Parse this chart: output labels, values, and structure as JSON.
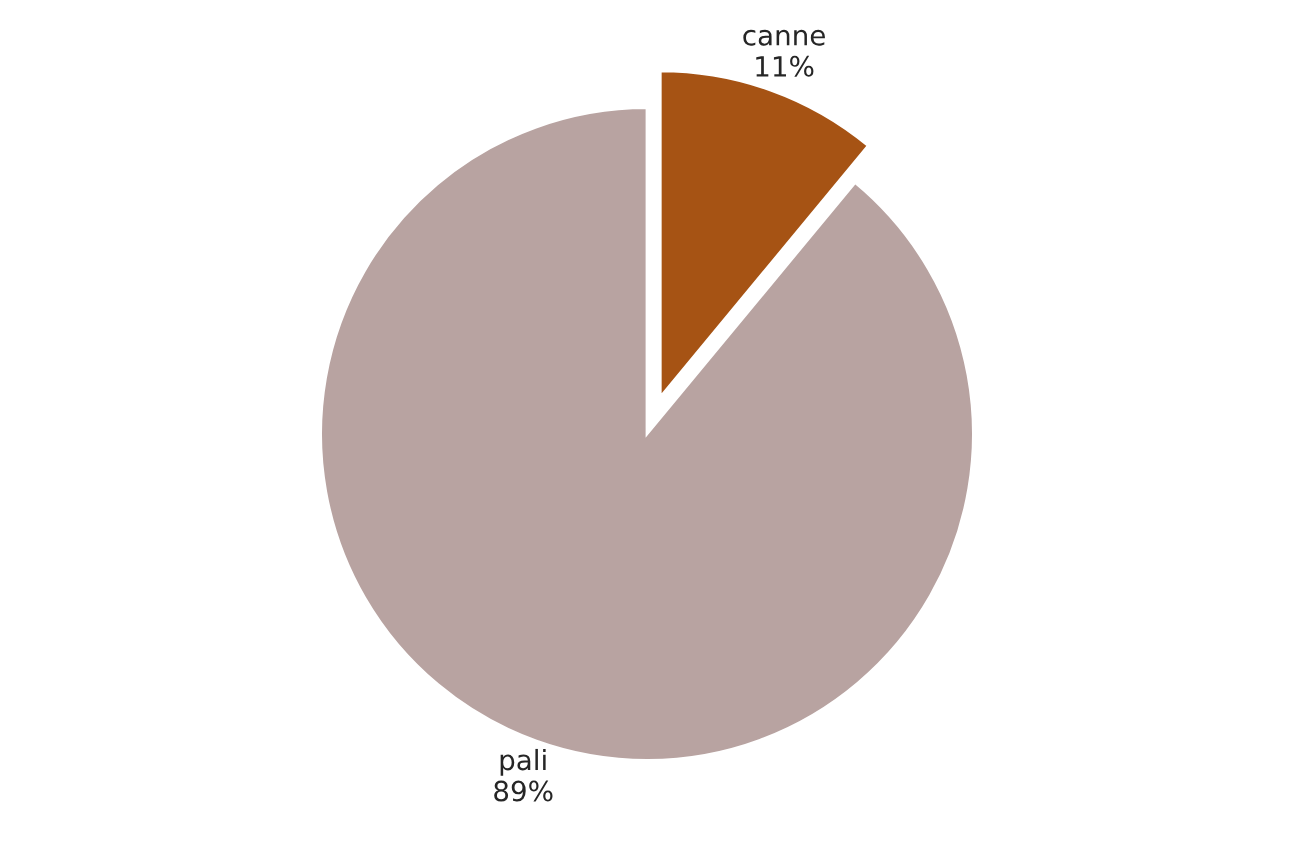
{
  "chart_data": {
    "type": "pie",
    "categories": [
      "canne",
      "pali"
    ],
    "values": [
      11,
      89
    ],
    "colors": [
      "#a65314",
      "#b8a3a1"
    ],
    "value_labels": [
      "11%",
      "89%"
    ],
    "legend": false
  }
}
